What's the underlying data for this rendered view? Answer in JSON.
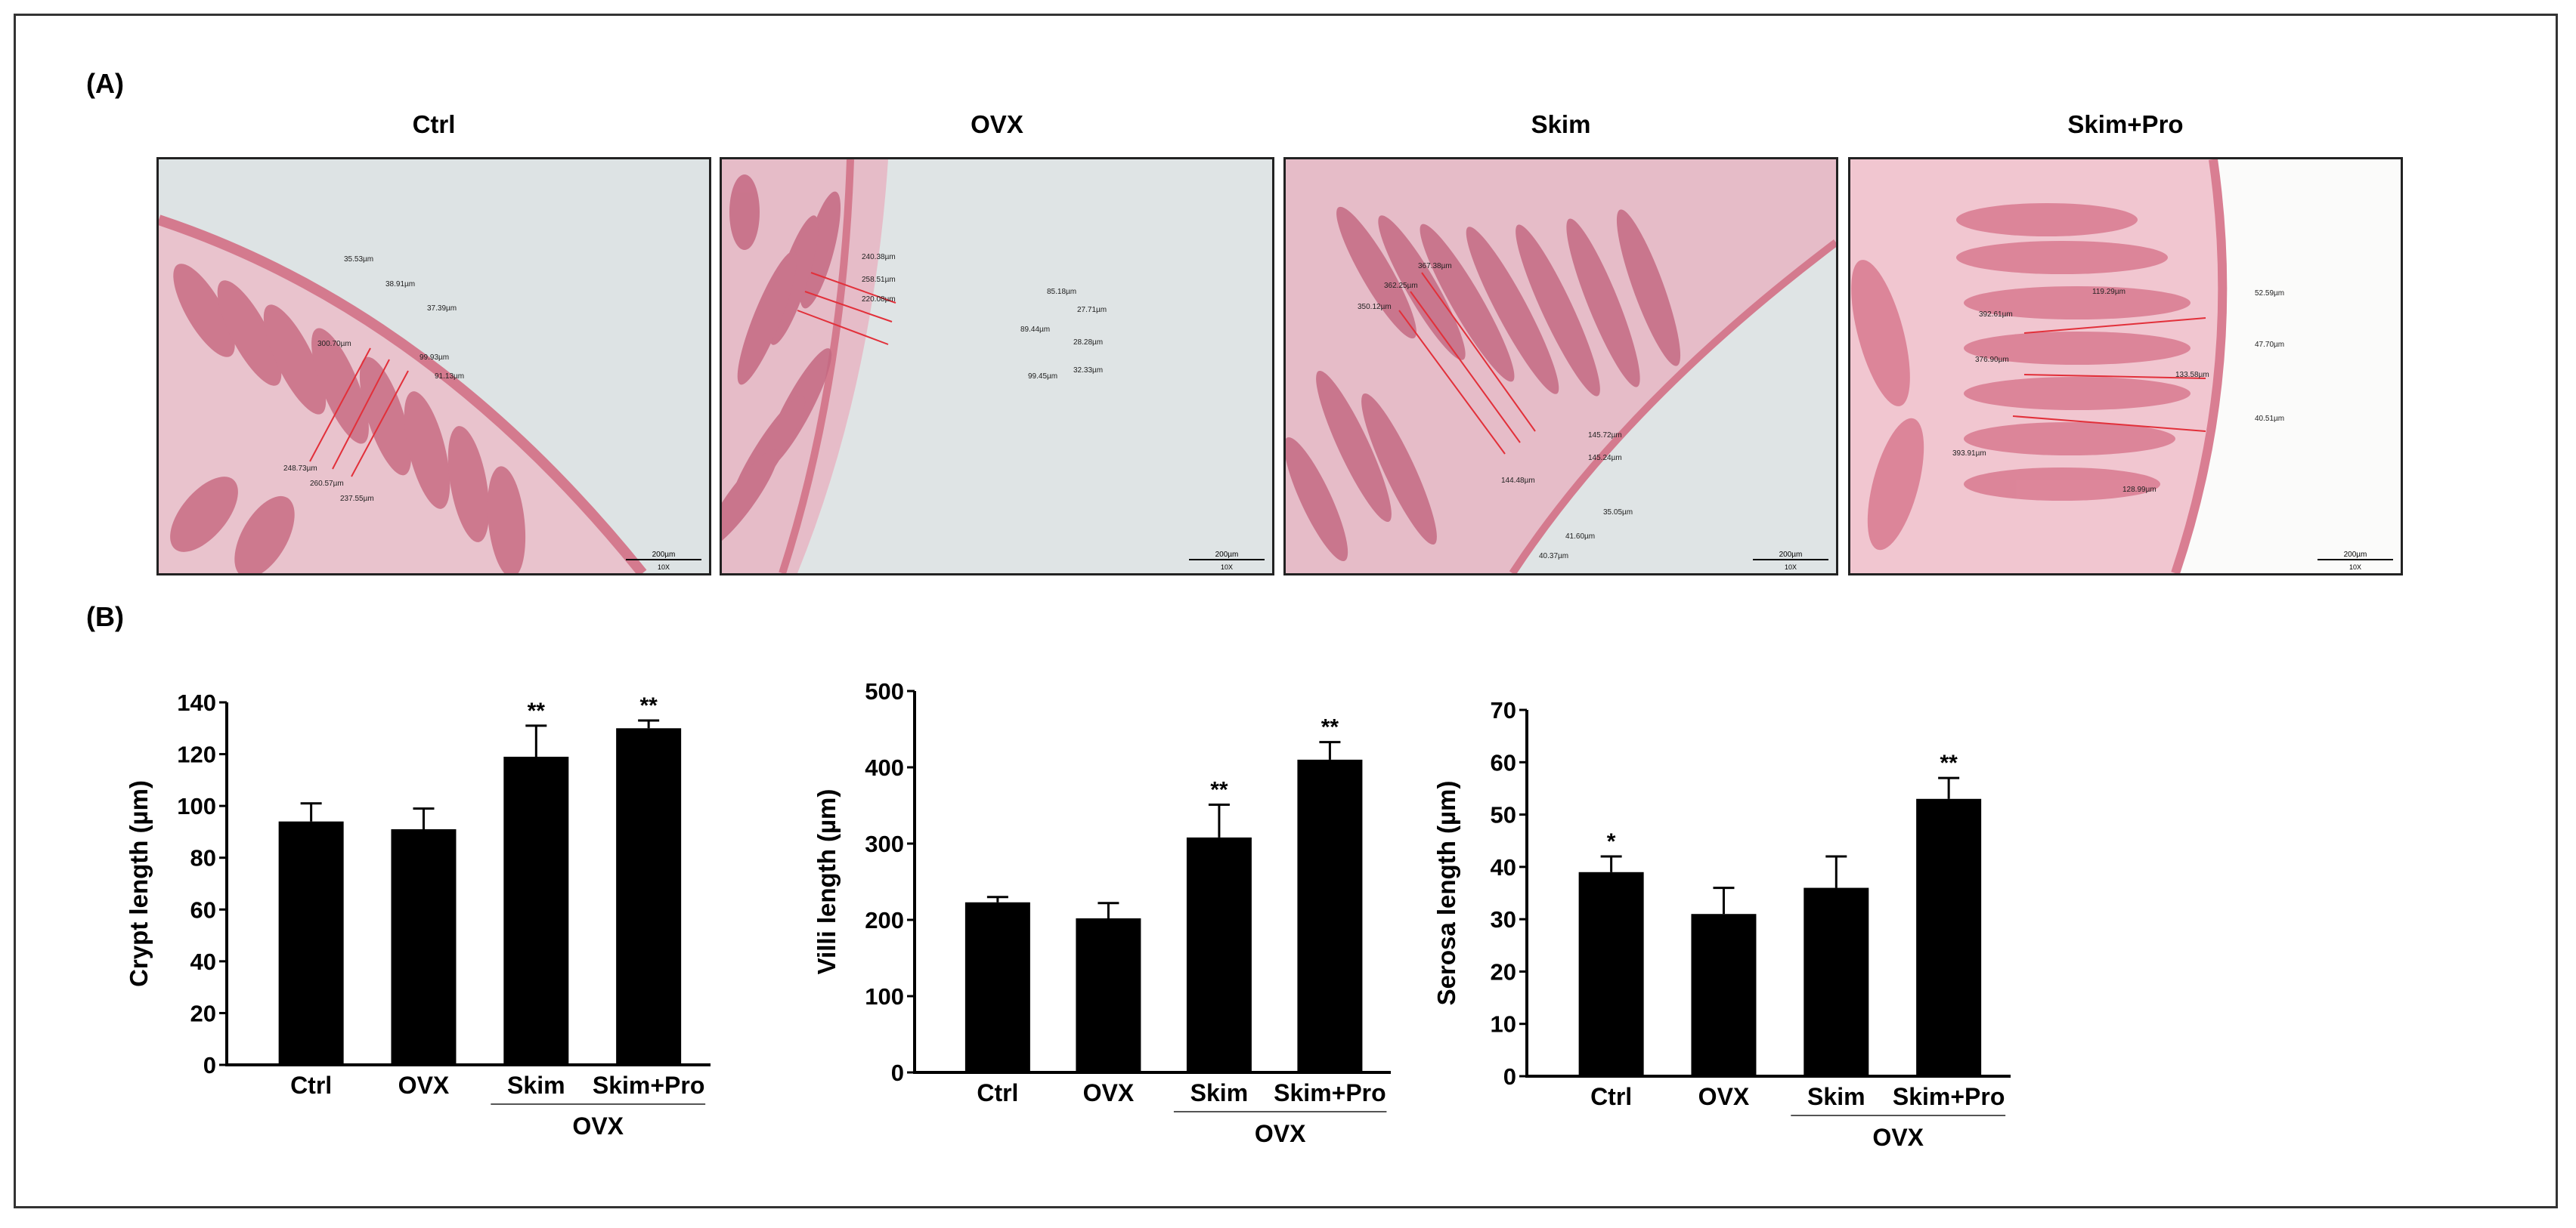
{
  "panel_labels": {
    "a": "(A)",
    "b": "(B)"
  },
  "micrographs": [
    {
      "title": "Ctrl",
      "scale_bar": "200µm",
      "magnification": "10X",
      "annotations": [
        "35.53µm",
        "38.91µm",
        "37.39µm",
        "300.70µm",
        "99.93µm",
        "91.13µm",
        "248.73µm",
        "260.57µm",
        "237.55µm"
      ]
    },
    {
      "title": "OVX",
      "scale_bar": "200µm",
      "magnification": "10X",
      "annotations": [
        "240.38µm",
        "258.51µm",
        "220.08µm",
        "85.18µm",
        "27.71µm",
        "89.44µm",
        "28.28µm",
        "99.45µm",
        "32.33µm"
      ]
    },
    {
      "title": "Skim",
      "scale_bar": "200µm",
      "magnification": "10X",
      "annotations": [
        "367.38µm",
        "362.25µm",
        "350.12µm",
        "145.72µm",
        "145.24µm",
        "144.48µm",
        "35.05µm",
        "41.60µm",
        "40.37µm"
      ]
    },
    {
      "title": "Skim+Pro",
      "scale_bar": "200µm",
      "magnification": "10X",
      "annotations": [
        "52.59µm",
        "119.29µm",
        "392.61µm",
        "47.70µm",
        "376.90µm",
        "133.58µm",
        "40.51µm",
        "393.91µm",
        "128.99µm"
      ]
    }
  ],
  "chart_data": [
    {
      "type": "bar",
      "ylabel": "Crypt length (µm)",
      "categories": [
        "Ctrl",
        "OVX",
        "Skim",
        "Skim+Pro"
      ],
      "values": [
        94,
        91,
        119,
        130
      ],
      "errors": [
        7,
        8,
        12,
        3
      ],
      "significance": [
        "",
        "",
        "**",
        "**"
      ],
      "ylim": [
        0,
        140
      ],
      "yticks": [
        0,
        20,
        40,
        60,
        80,
        100,
        120,
        140
      ],
      "group_label": "OVX",
      "group_span": [
        "Skim",
        "Skim+Pro"
      ]
    },
    {
      "type": "bar",
      "ylabel": "Villi length (µm)",
      "categories": [
        "Ctrl",
        "OVX",
        "Skim",
        "Skim+Pro"
      ],
      "values": [
        223,
        202,
        308,
        410
      ],
      "errors": [
        7,
        20,
        43,
        23
      ],
      "significance": [
        "",
        "",
        "**",
        "**"
      ],
      "ylim": [
        0,
        500
      ],
      "yticks": [
        0,
        100,
        200,
        300,
        400,
        500
      ],
      "group_label": "OVX",
      "group_span": [
        "Skim",
        "Skim+Pro"
      ]
    },
    {
      "type": "bar",
      "ylabel": "Serosa length (µm)",
      "categories": [
        "Ctrl",
        "OVX",
        "Skim",
        "Skim+Pro"
      ],
      "values": [
        39,
        31,
        36,
        53
      ],
      "errors": [
        3,
        5,
        6,
        4
      ],
      "significance": [
        "*",
        "",
        "",
        "**"
      ],
      "ylim": [
        0,
        70
      ],
      "yticks": [
        0,
        10,
        20,
        30,
        40,
        50,
        60,
        70
      ],
      "group_label": "OVX",
      "group_span": [
        "Skim",
        "Skim+Pro"
      ]
    }
  ]
}
